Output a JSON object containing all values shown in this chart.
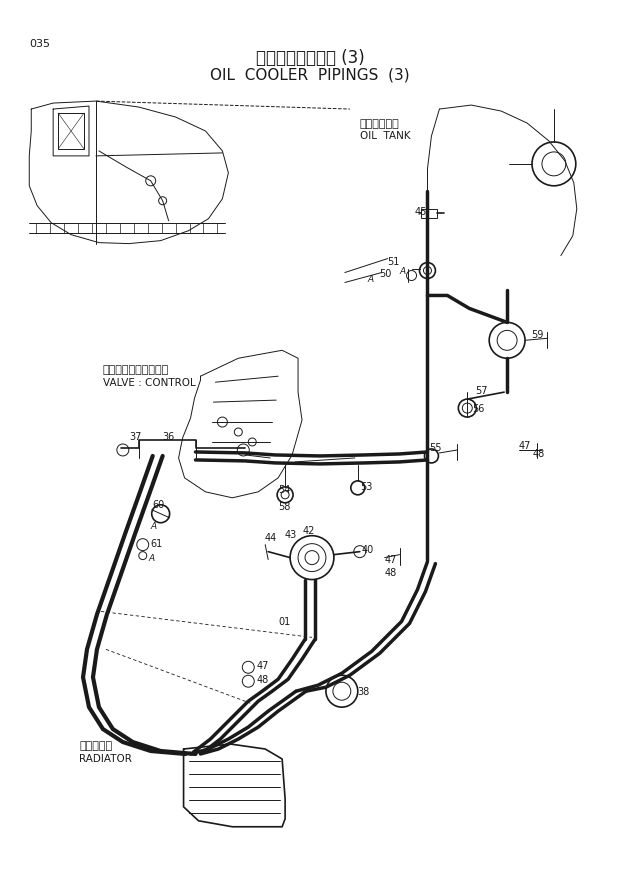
{
  "title_jp": "オイルクーラ配管 (3)",
  "title_en": "OIL  COOLER  PIPINGS  (3)",
  "page_num": "035",
  "bg_color": "#ffffff",
  "line_color": "#1a1a1a",
  "text_color": "#1a1a1a",
  "oil_tank_jp": "オイルタンク",
  "oil_tank_en": "OIL  TANK",
  "valve_jp": "バルブ：コントロール",
  "valve_en": "VALVE : CONTROL",
  "radiator_jp": "ラジエータ",
  "radiator_en": "RADIATOR",
  "figsize": [
    6.2,
    8.76
  ],
  "dpi": 100
}
